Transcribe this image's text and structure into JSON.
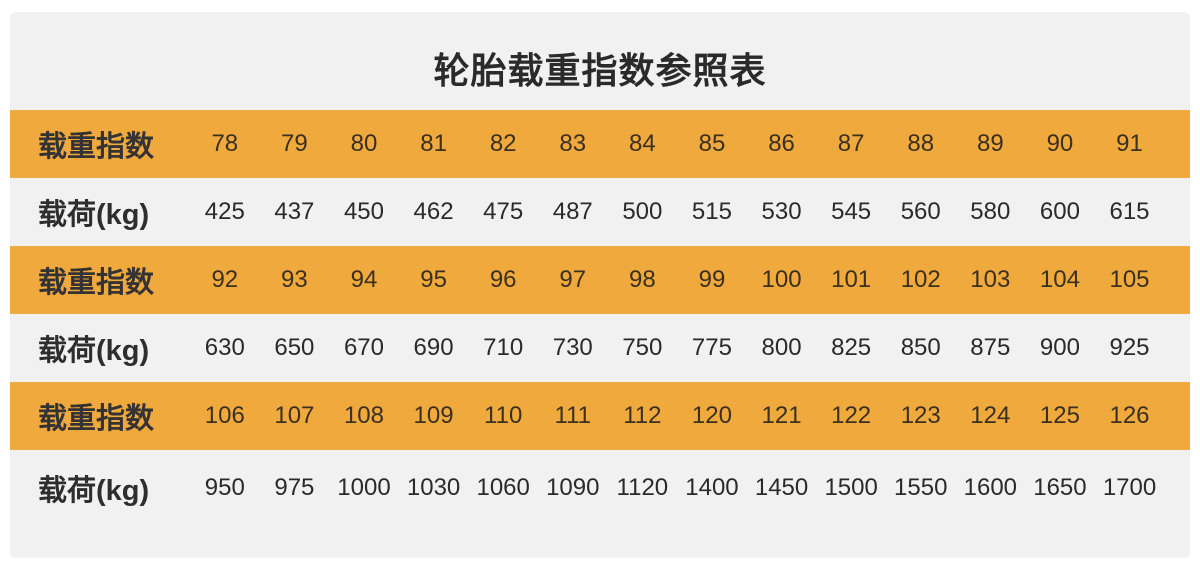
{
  "title": "轮胎载重指数参照表",
  "colors": {
    "orange": "#f0a93c",
    "background": "#f1f1f1"
  },
  "rows": [
    {
      "type": "index",
      "label": "载重指数",
      "values": [
        "78",
        "79",
        "80",
        "81",
        "82",
        "83",
        "84",
        "85",
        "86",
        "87",
        "88",
        "89",
        "90",
        "91"
      ]
    },
    {
      "type": "load",
      "label": "载荷(kg)",
      "values": [
        "425",
        "437",
        "450",
        "462",
        "475",
        "487",
        "500",
        "515",
        "530",
        "545",
        "560",
        "580",
        "600",
        "615"
      ]
    },
    {
      "type": "index",
      "label": "载重指数",
      "values": [
        "92",
        "93",
        "94",
        "95",
        "96",
        "97",
        "98",
        "99",
        "100",
        "101",
        "102",
        "103",
        "104",
        "105"
      ]
    },
    {
      "type": "load",
      "label": "载荷(kg)",
      "values": [
        "630",
        "650",
        "670",
        "690",
        "710",
        "730",
        "750",
        "775",
        "800",
        "825",
        "850",
        "875",
        "900",
        "925"
      ]
    },
    {
      "type": "index",
      "label": "载重指数",
      "values": [
        "106",
        "107",
        "108",
        "109",
        "110",
        "111",
        "112",
        "120",
        "121",
        "122",
        "123",
        "124",
        "125",
        "126"
      ]
    },
    {
      "type": "load",
      "label": "载荷(kg)",
      "values": [
        "950",
        "975",
        "1000",
        "1030",
        "1060",
        "1090",
        "1120",
        "1400",
        "1450",
        "1500",
        "1550",
        "1600",
        "1650",
        "1700"
      ]
    }
  ]
}
